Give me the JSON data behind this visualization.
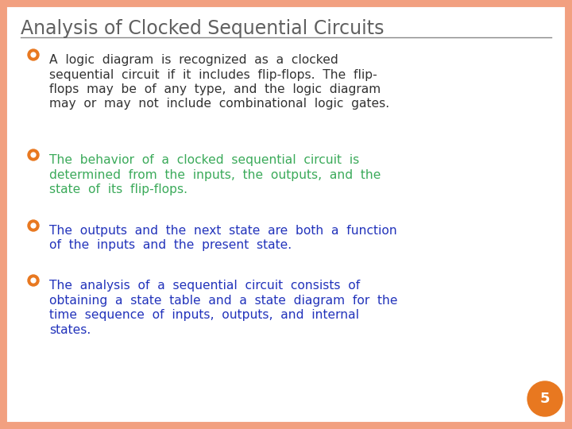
{
  "title": "Analysis of Clocked Sequential Circuits",
  "title_color": "#606060",
  "background_color": "#FFFFFF",
  "border_color": "#F2A080",
  "title_line_color": "#888888",
  "bullet_outer_color": "#E87820",
  "bullets": [
    {
      "lines": [
        "A  logic  diagram  is  recognized  as  a  clocked",
        "sequential  circuit  if  it  includes  flip-flops.  The  flip-",
        "flops  may  be  of  any  type,  and  the  logic  diagram",
        "may  or  may  not  include  combinational  logic  gates."
      ],
      "color": "#333333"
    },
    {
      "lines": [
        "The  behavior  of  a  clocked  sequential  circuit  is",
        "determined  from  the  inputs,  the  outputs,  and  the",
        "state  of  its  flip-flops."
      ],
      "color": "#3BAA5A"
    },
    {
      "lines": [
        "The  outputs  and  the  next  state  are  both  a  function",
        "of  the  inputs  and  the  present  state."
      ],
      "color": "#2233BB"
    },
    {
      "lines": [
        "The  analysis  of  a  sequential  circuit  consists  of",
        "obtaining  a  state  table  and  a  state  diagram  for  the",
        "time  sequence  of  inputs,  outputs,  and  internal",
        "states."
      ],
      "color": "#2233BB"
    }
  ],
  "page_number": "5",
  "page_circle_color": "#E87820",
  "page_number_color": "#FFFFFF",
  "figsize": [
    7.2,
    5.4
  ],
  "dpi": 100
}
